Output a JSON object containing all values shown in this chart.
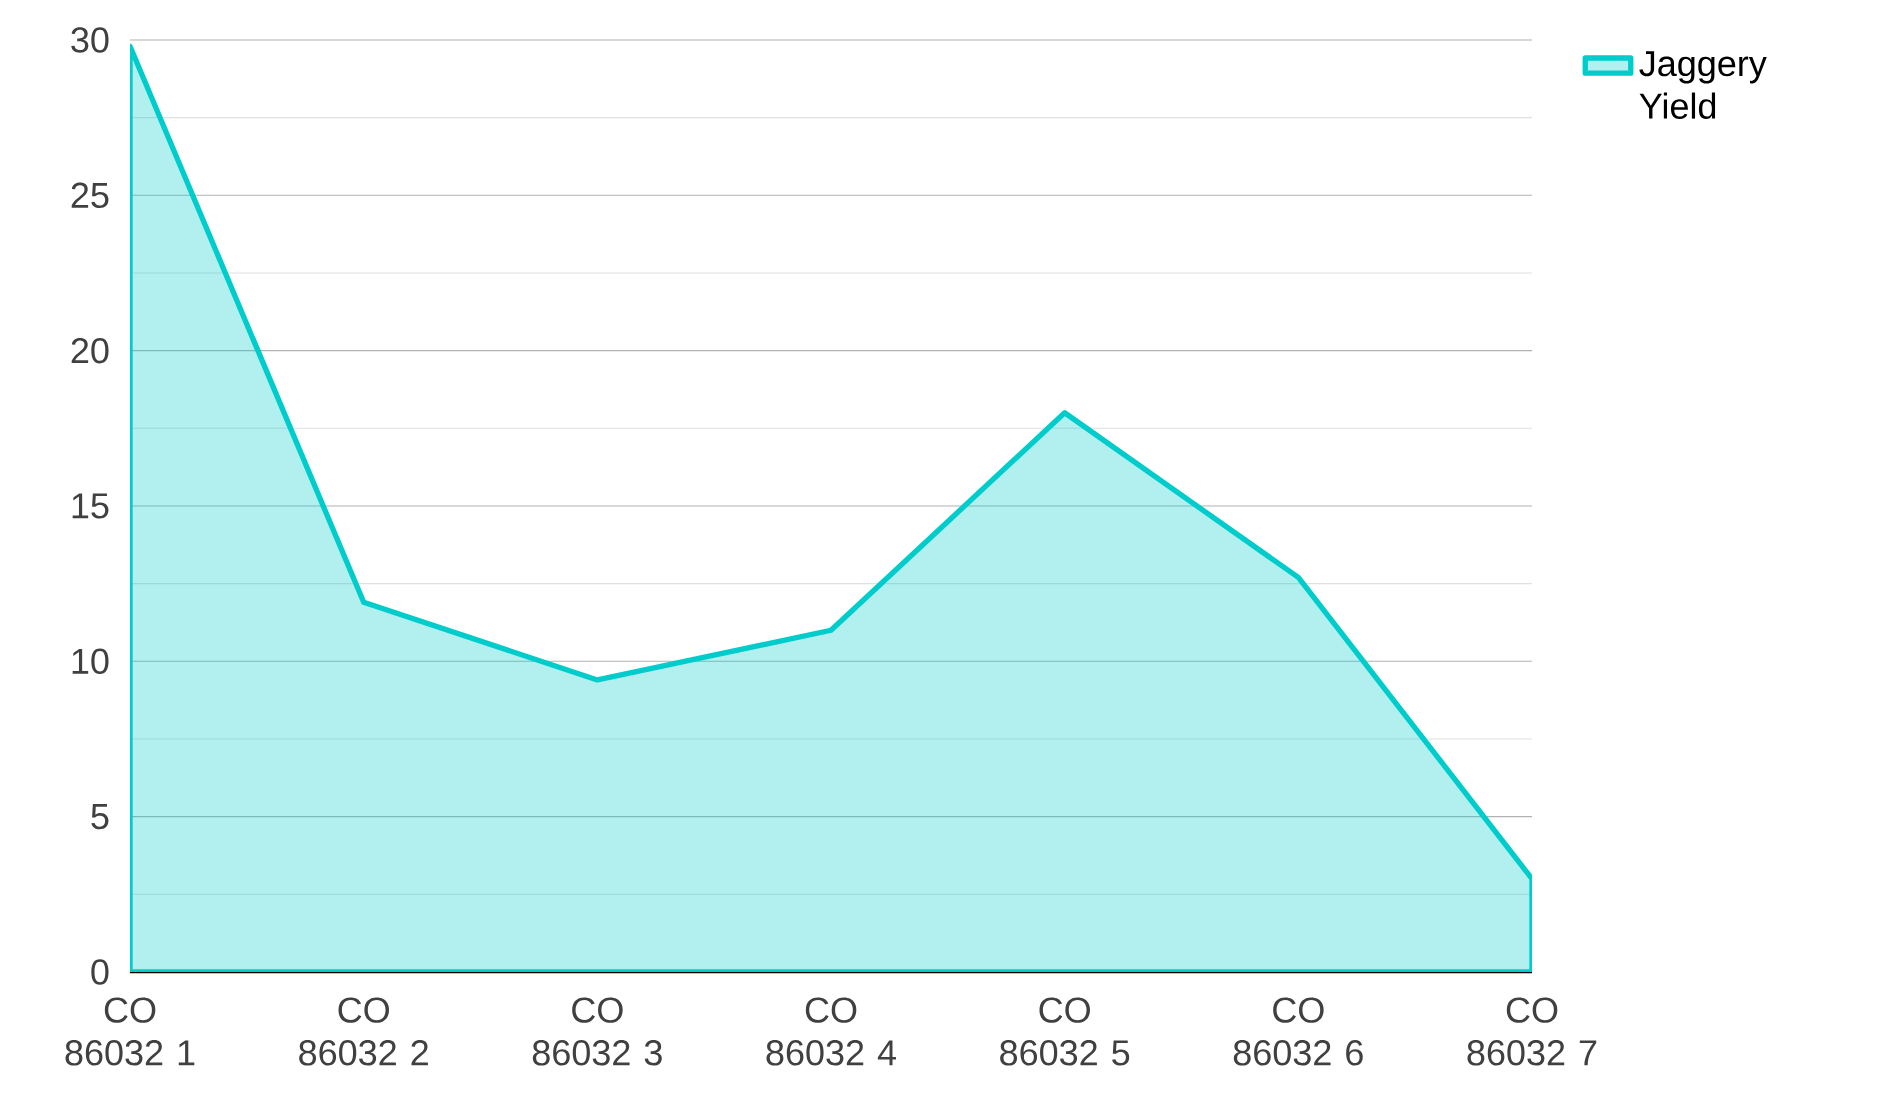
{
  "chart_data": {
    "type": "area",
    "categories": [
      "CO 86032 1",
      "CO 86032 2",
      "CO 86032 3",
      "CO 86032 4",
      "CO 86032 5",
      "CO 86032 6",
      "CO 86032 7"
    ],
    "series": [
      {
        "name": "Jaggery Yield",
        "color": "#00cccc",
        "values": [
          29.8,
          11.9,
          9.4,
          11.0,
          18.0,
          12.7,
          3.0
        ]
      }
    ],
    "ylim": [
      0,
      30
    ],
    "yticks": [
      0,
      {
        "value": 2.5,
        "label": null
      },
      5,
      {
        "value": 7.5,
        "label": null
      },
      10,
      {
        "value": 12.5,
        "label": null
      },
      15,
      {
        "value": 17.5,
        "label": null
      },
      20,
      {
        "value": 22.5,
        "label": null
      },
      25,
      {
        "value": 27.5,
        "label": null
      },
      30
    ],
    "grid": "y",
    "legend": "top right"
  }
}
